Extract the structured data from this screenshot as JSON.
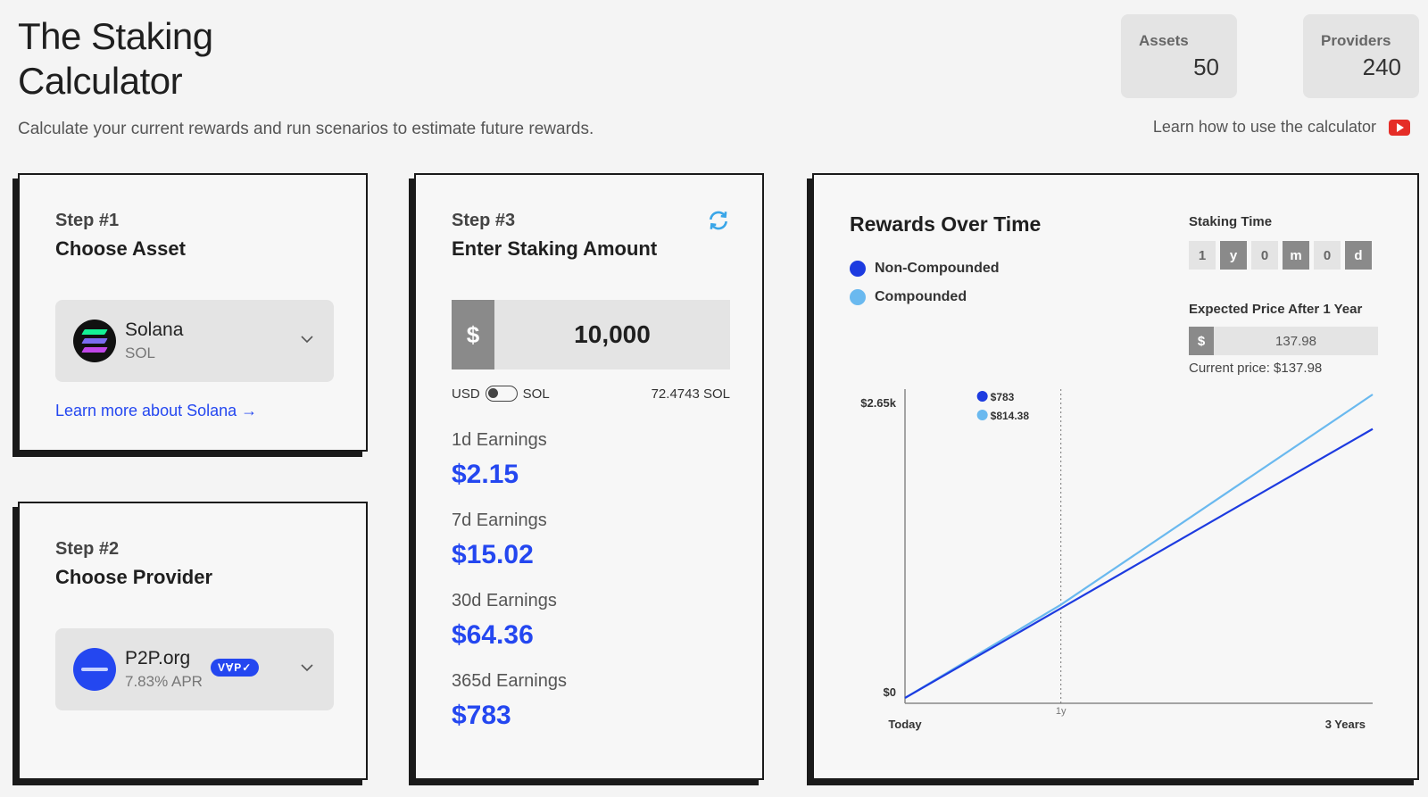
{
  "header": {
    "title_line1": "The Staking",
    "title_line2": "Calculator",
    "subtitle": "Calculate your current rewards and run scenarios to estimate future rewards.",
    "learn_video": "Learn how to use the calculator"
  },
  "stats": {
    "assets_label": "Assets",
    "assets_value": "50",
    "providers_label": "Providers",
    "providers_value": "240"
  },
  "step1": {
    "step": "Step #1",
    "title": "Choose Asset",
    "asset_name": "Solana",
    "asset_symbol": "SOL",
    "learn_more": "Learn more about Solana →"
  },
  "step2": {
    "step": "Step #2",
    "title": "Choose Provider",
    "provider_name": "P2P.org",
    "provider_apr": "7.83% APR",
    "badge": "VⱯP✓"
  },
  "step3": {
    "step": "Step #3",
    "title": "Enter Staking Amount",
    "currency_symbol": "$",
    "amount": "10,000",
    "toggle_left": "USD",
    "toggle_right": "SOL",
    "sol_amount": "72.4743 SOL",
    "earnings": [
      {
        "label": "1d Earnings",
        "value": "$2.15"
      },
      {
        "label": "7d Earnings",
        "value": "$15.02"
      },
      {
        "label": "30d Earnings",
        "value": "$64.36"
      },
      {
        "label": "365d Earnings",
        "value": "$783"
      }
    ]
  },
  "chart_panel": {
    "title": "Rewards Over Time",
    "legend": [
      {
        "name": "Non-Compounded",
        "color": "#1d3be0"
      },
      {
        "name": "Compounded",
        "color": "#6ab9ef"
      }
    ],
    "staking_time_label": "Staking Time",
    "staking_time": {
      "years": "1",
      "years_unit": "y",
      "months": "0",
      "months_unit": "m",
      "days": "0",
      "days_unit": "d"
    },
    "expected_price_label": "Expected Price After 1 Year",
    "expected_price_symbol": "$",
    "expected_price": "137.98",
    "current_price": "Current price: $137.98"
  },
  "chart_data": {
    "type": "line",
    "x": [
      "Today",
      "1y",
      "3 Years"
    ],
    "x_values": [
      0,
      1,
      3
    ],
    "ylim": [
      0,
      2650
    ],
    "ytick_labels": [
      "$0",
      "$2.65k"
    ],
    "xtick_labels": [
      "Today",
      "1y",
      "3 Years"
    ],
    "marker_x": 1,
    "marker_x_label": "1y",
    "tooltip": [
      {
        "series": "Non-Compounded",
        "value": "$783"
      },
      {
        "series": "Compounded",
        "value": "$814.38"
      }
    ],
    "series": [
      {
        "name": "Non-Compounded",
        "x": [
          0,
          1,
          3
        ],
        "values": [
          0,
          783,
          2349
        ],
        "color": "#1d3be0"
      },
      {
        "name": "Compounded",
        "x": [
          0,
          1,
          3
        ],
        "values": [
          0,
          814.38,
          2650
        ],
        "color": "#6ab9ef"
      }
    ]
  }
}
